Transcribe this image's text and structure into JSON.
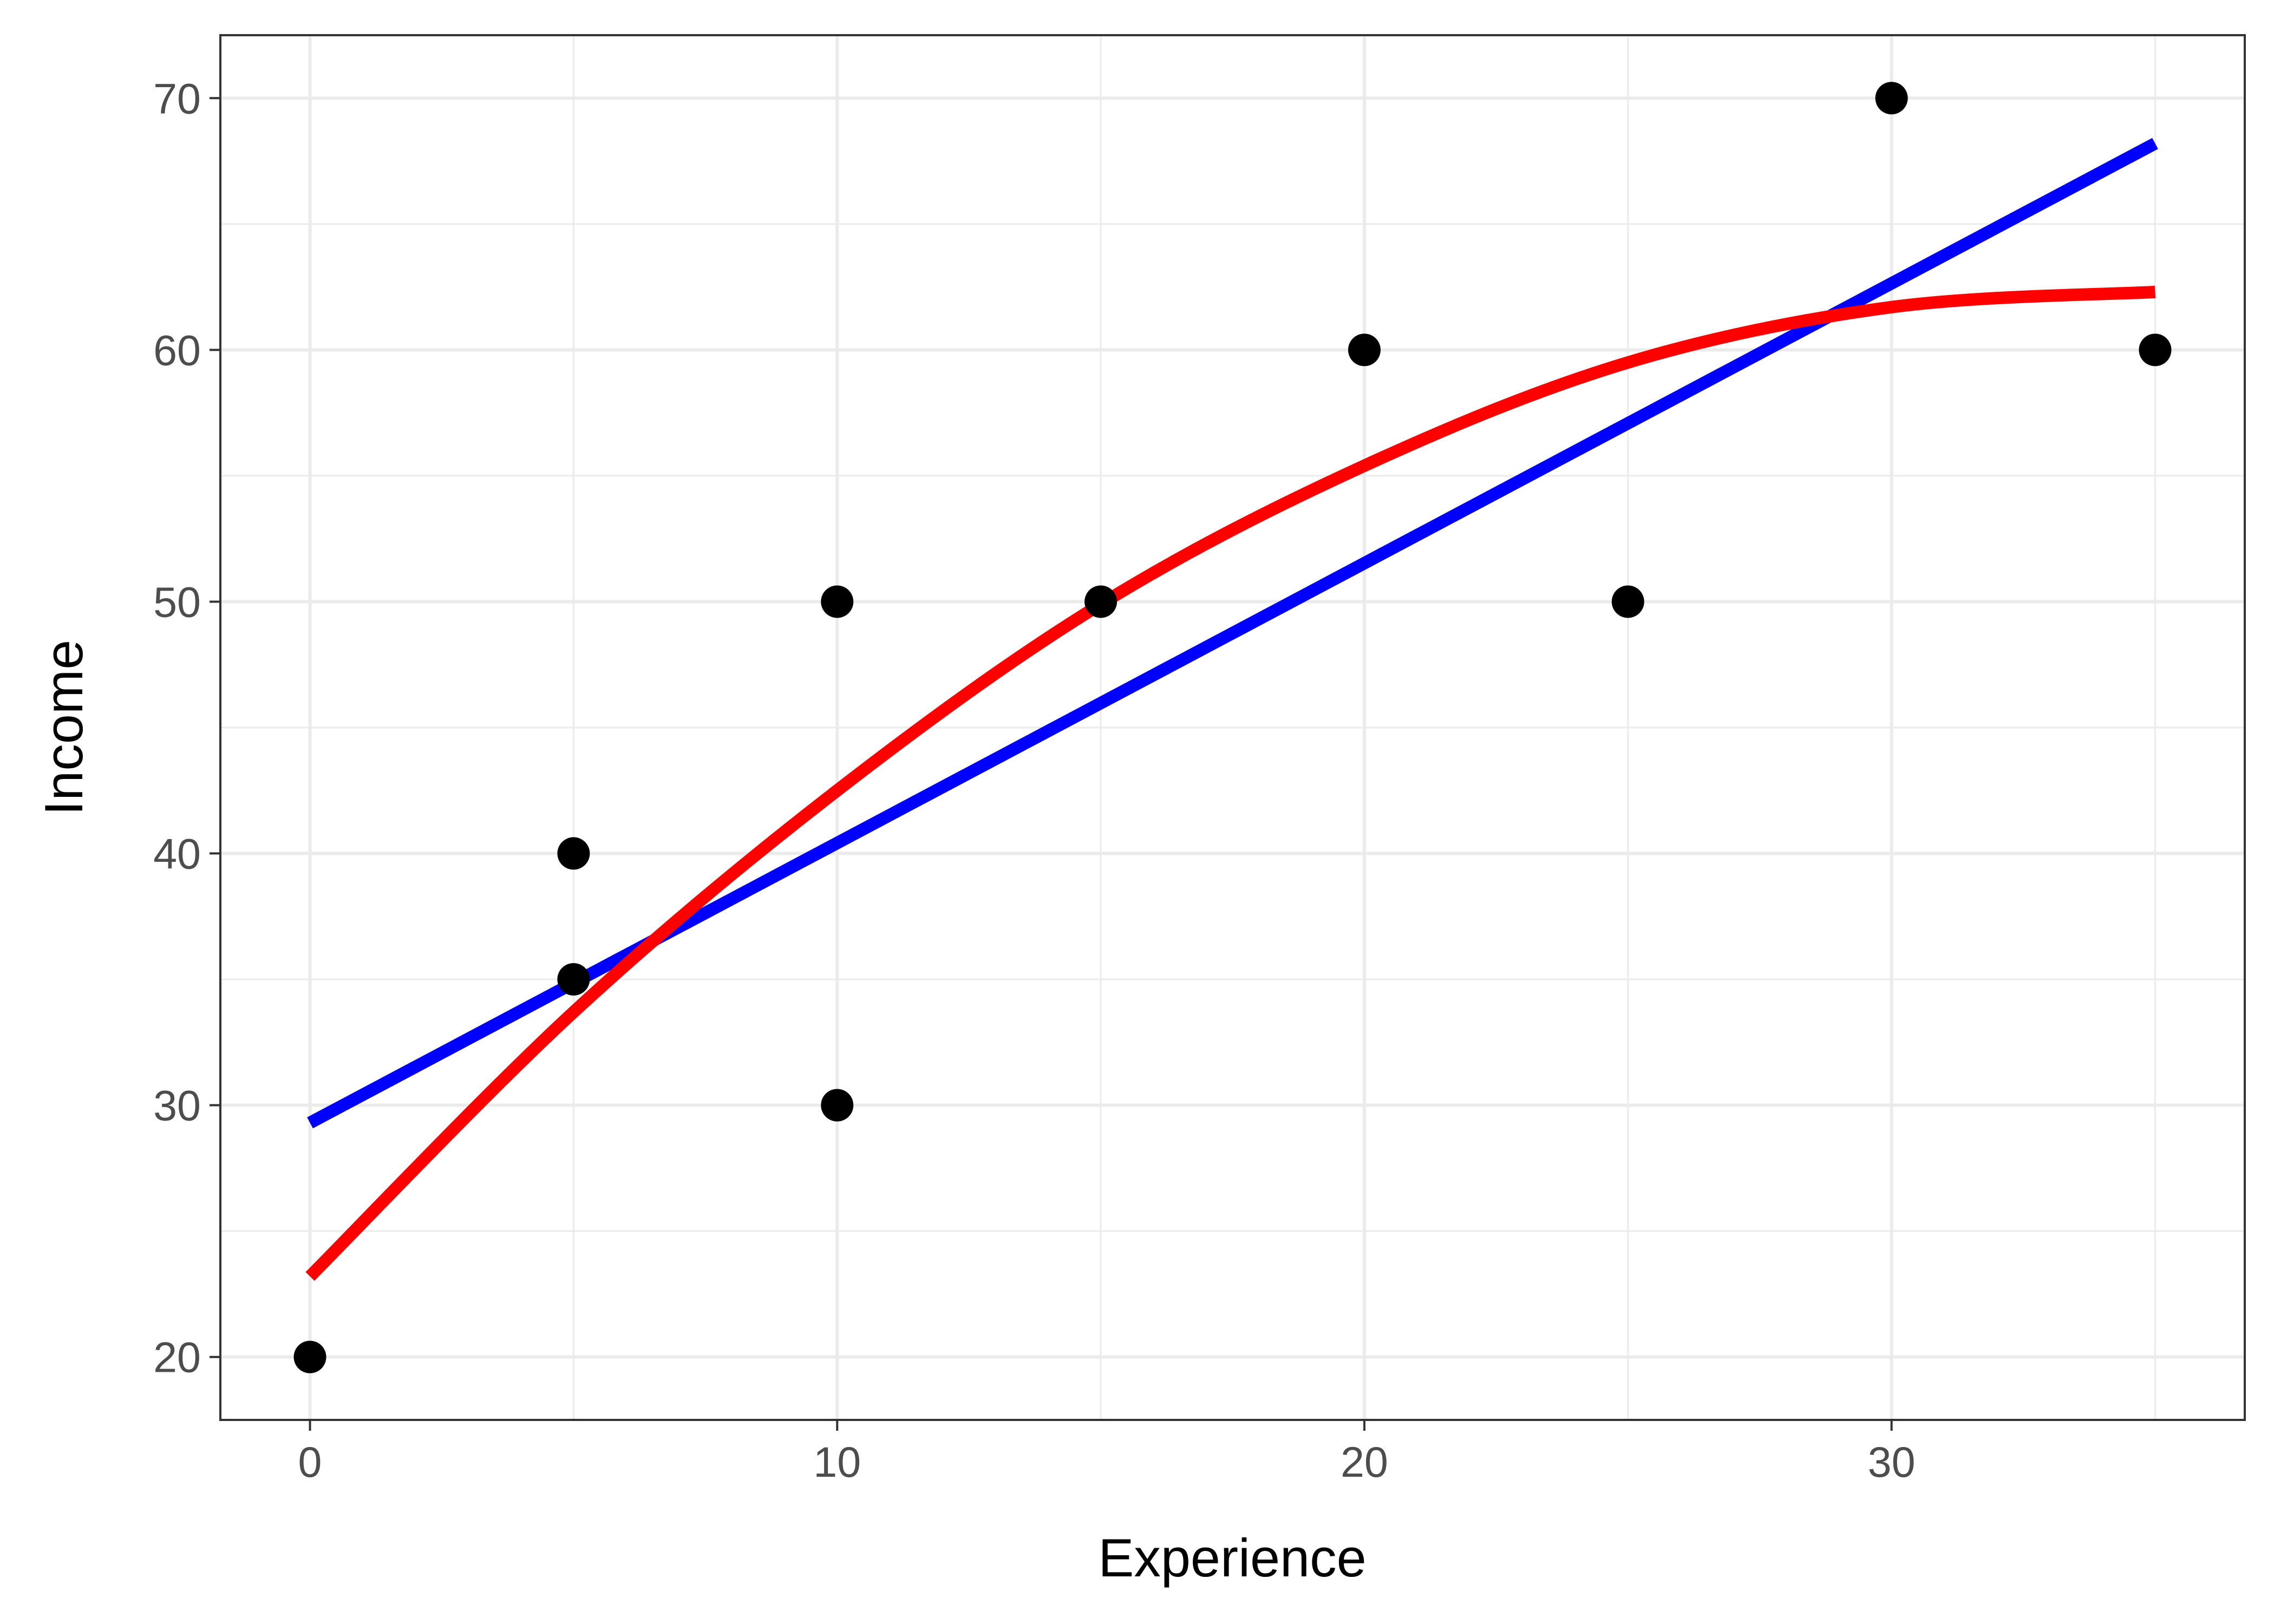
{
  "chart_data": {
    "type": "scatter",
    "title": "",
    "xlabel": "Experience",
    "ylabel": "Income",
    "xlim": [
      -1.7,
      36.7
    ],
    "ylim": [
      17.5,
      72.5
    ],
    "x_ticks": [
      0,
      10,
      20,
      30
    ],
    "x_tick_labels": [
      "0",
      "10",
      "20",
      "30"
    ],
    "x_minor_ticks": [
      5,
      15,
      25,
      35
    ],
    "y_ticks": [
      20,
      30,
      40,
      50,
      60,
      70
    ],
    "y_tick_labels": [
      "20",
      "30",
      "40",
      "50",
      "60",
      "70"
    ],
    "y_minor_ticks": [
      25,
      35,
      45,
      55,
      65
    ],
    "grid": true,
    "legend": "none",
    "points": {
      "x": [
        0,
        5,
        5,
        10,
        10,
        15,
        20,
        25,
        30,
        35
      ],
      "y": [
        20,
        35,
        40,
        30,
        50,
        50,
        60,
        50,
        70,
        60
      ],
      "color": "#000000"
    },
    "lines": [
      {
        "kind": "linear fit",
        "color": "#0000ff",
        "x": [
          0,
          35
        ],
        "y": [
          29.3,
          68.2
        ]
      },
      {
        "kind": "quadratic fit",
        "color": "#ff0000",
        "x": [
          0,
          5,
          10,
          15,
          20,
          25,
          30,
          35
        ],
        "y": [
          23.2,
          33.7,
          42.5,
          49.9,
          55.4,
          59.5,
          61.7,
          62.3
        ]
      }
    ],
    "colors": {
      "panel_border": "#333333",
      "grid": "#ebebeb",
      "tick_label": "#4d4d4d",
      "axis_title": "#000000"
    }
  }
}
